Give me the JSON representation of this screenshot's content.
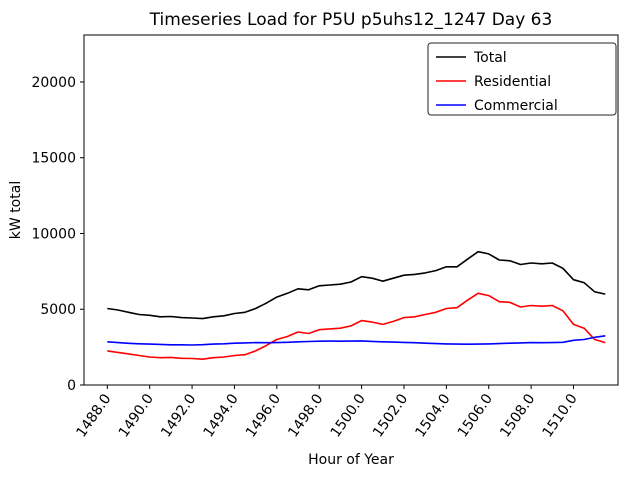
{
  "chart_data": {
    "type": "line",
    "title": "Timeseries Load for P5U p5uhs12_1247  Day 63",
    "xlabel": "Hour of Year",
    "ylabel": "kW total",
    "xlim": [
      1486.9,
      1512.1
    ],
    "ylim": [
      0,
      23100
    ],
    "grid": false,
    "legend_position": "upper right",
    "xticks": [
      {
        "value": 1488,
        "label": "1488.0"
      },
      {
        "value": 1490,
        "label": "1490.0"
      },
      {
        "value": 1492,
        "label": "1492.0"
      },
      {
        "value": 1494,
        "label": "1494.0"
      },
      {
        "value": 1496,
        "label": "1496.0"
      },
      {
        "value": 1498,
        "label": "1498.0"
      },
      {
        "value": 1500,
        "label": "1500.0"
      },
      {
        "value": 1502,
        "label": "1502.0"
      },
      {
        "value": 1504,
        "label": "1504.0"
      },
      {
        "value": 1506,
        "label": "1506.0"
      },
      {
        "value": 1508,
        "label": "1508.0"
      },
      {
        "value": 1510,
        "label": "1510.0"
      }
    ],
    "yticks": [
      {
        "value": 0,
        "label": "0"
      },
      {
        "value": 5000,
        "label": "5000"
      },
      {
        "value": 10000,
        "label": "10000"
      },
      {
        "value": 15000,
        "label": "15000"
      },
      {
        "value": 20000,
        "label": "20000"
      }
    ],
    "x": [
      1488.0,
      1488.5,
      1489.0,
      1489.5,
      1490.0,
      1490.5,
      1491.0,
      1491.5,
      1492.0,
      1492.5,
      1493.0,
      1493.5,
      1494.0,
      1494.5,
      1495.0,
      1495.5,
      1496.0,
      1496.5,
      1497.0,
      1497.5,
      1498.0,
      1498.5,
      1499.0,
      1499.5,
      1500.0,
      1500.5,
      1501.0,
      1501.5,
      1502.0,
      1502.5,
      1503.0,
      1503.5,
      1504.0,
      1504.5,
      1505.0,
      1505.5,
      1506.0,
      1506.5,
      1507.0,
      1507.5,
      1508.0,
      1508.5,
      1509.0,
      1509.5,
      1510.0,
      1510.5,
      1511.0,
      1511.5
    ],
    "series": [
      {
        "name": "Total",
        "color": "#000000",
        "values": [
          5050,
          4950,
          4800,
          4650,
          4600,
          4500,
          4520,
          4450,
          4420,
          4380,
          4500,
          4570,
          4720,
          4800,
          5050,
          5400,
          5800,
          6050,
          6350,
          6280,
          6550,
          6600,
          6650,
          6800,
          7150,
          7050,
          6850,
          7050,
          7250,
          7300,
          7400,
          7550,
          7800,
          7800,
          8300,
          8800,
          8650,
          8250,
          8200,
          7950,
          8050,
          8000,
          8050,
          7700,
          6950,
          6750,
          6150,
          6000
        ]
      },
      {
        "name": "Residential",
        "color": "#ff0000",
        "values": [
          2250,
          2150,
          2050,
          1950,
          1850,
          1800,
          1820,
          1760,
          1750,
          1700,
          1800,
          1850,
          1950,
          2000,
          2250,
          2600,
          3000,
          3200,
          3500,
          3400,
          3650,
          3700,
          3750,
          3900,
          4250,
          4150,
          4000,
          4200,
          4450,
          4500,
          4650,
          4800,
          5050,
          5100,
          5600,
          6050,
          5900,
          5500,
          5450,
          5150,
          5250,
          5200,
          5250,
          4900,
          4000,
          3750,
          3000,
          2800
        ]
      },
      {
        "name": "Commercial",
        "color": "#0000ff",
        "values": [
          2850,
          2800,
          2750,
          2720,
          2700,
          2680,
          2650,
          2650,
          2640,
          2660,
          2700,
          2720,
          2760,
          2780,
          2800,
          2790,
          2800,
          2820,
          2850,
          2870,
          2890,
          2900,
          2890,
          2900,
          2910,
          2880,
          2850,
          2830,
          2810,
          2790,
          2760,
          2730,
          2710,
          2700,
          2690,
          2700,
          2710,
          2730,
          2760,
          2780,
          2800,
          2790,
          2800,
          2820,
          2950,
          3000,
          3150,
          3250
        ]
      }
    ]
  }
}
